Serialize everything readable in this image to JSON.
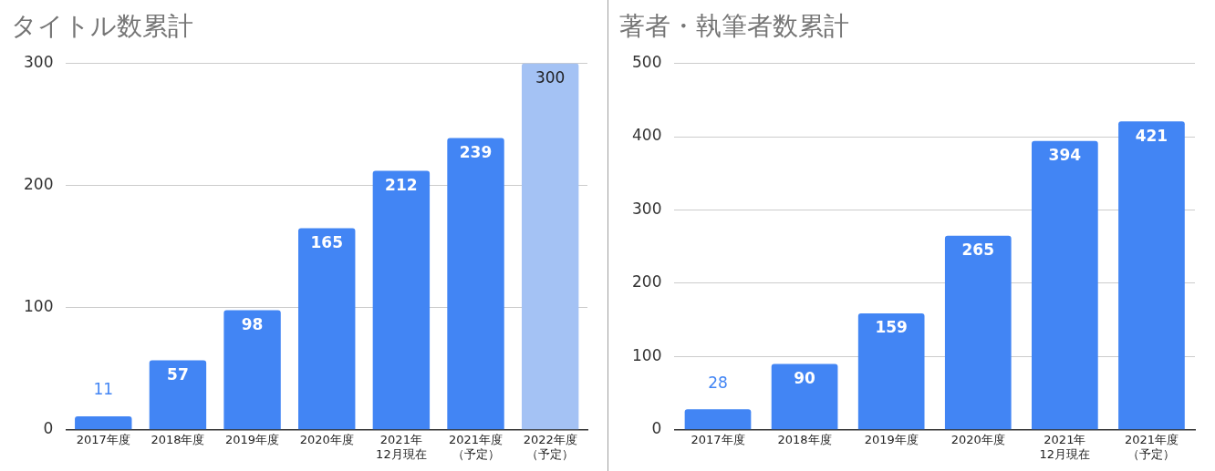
{
  "chart_data": [
    {
      "type": "bar",
      "title": "タイトル数累計",
      "categories": [
        "2017年度",
        "2018年度",
        "2019年度",
        "2020年度",
        "2021年\n12月現在",
        "2021年度（予定）",
        "2022年度（予定）"
      ],
      "values": [
        11,
        57,
        98,
        165,
        212,
        239,
        300
      ],
      "colors": [
        "#4285f4",
        "#4285f4",
        "#4285f4",
        "#4285f4",
        "#4285f4",
        "#4285f4",
        "#a4c2f4"
      ],
      "ylim": [
        0,
        300
      ],
      "yticks": [
        0,
        100,
        200,
        300
      ],
      "grid": "y",
      "legend": false,
      "data_labels": true
    },
    {
      "type": "bar",
      "title": "著者・執筆者数累計",
      "categories": [
        "2017年度",
        "2018年度",
        "2019年度",
        "2020年度",
        "2021年\n12月現在",
        "2021年度（予定）"
      ],
      "values": [
        28,
        90,
        159,
        265,
        394,
        421
      ],
      "colors": [
        "#4285f4",
        "#4285f4",
        "#4285f4",
        "#4285f4",
        "#4285f4",
        "#4285f4"
      ],
      "ylim": [
        0,
        500
      ],
      "yticks": [
        0,
        100,
        200,
        300,
        400,
        500
      ],
      "grid": "y",
      "legend": false,
      "data_labels": true
    }
  ]
}
